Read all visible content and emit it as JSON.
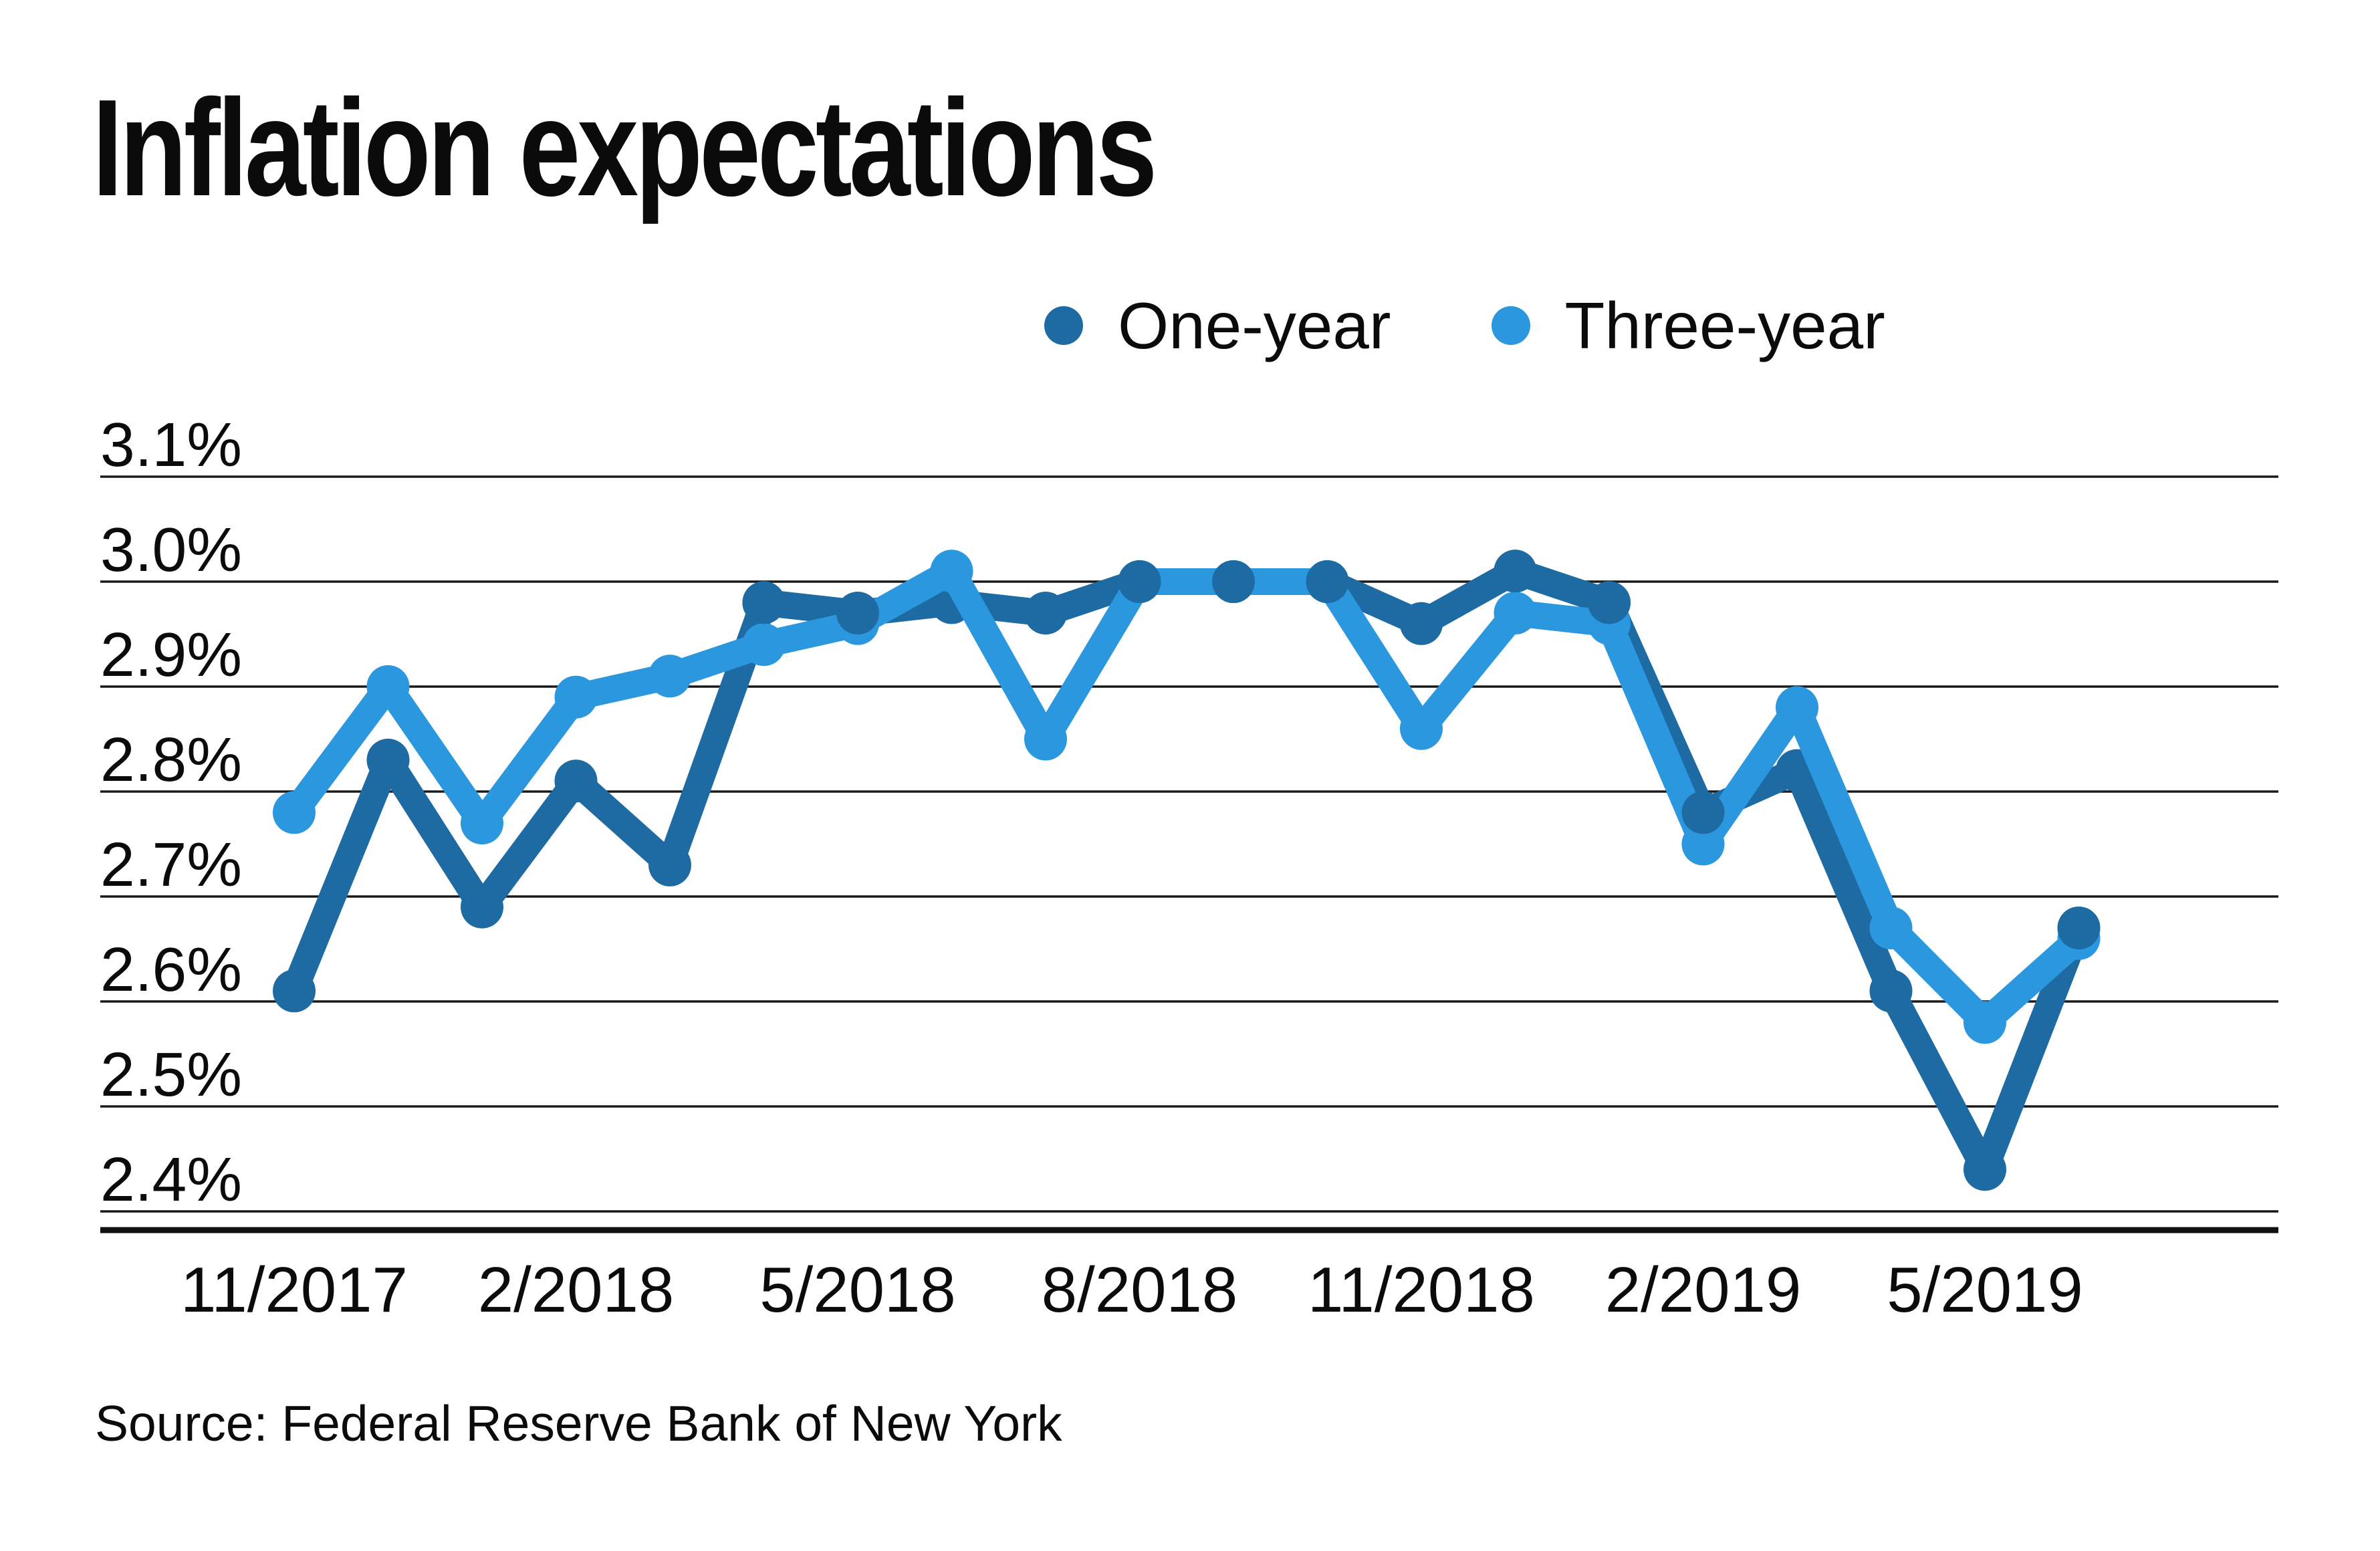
{
  "title": "Inflation expectations",
  "source": "Source: Federal Reserve Bank of New York",
  "legend": [
    {
      "label": "One-year",
      "color": "#1e6ba3"
    },
    {
      "label": "Three-year",
      "color": "#2b97de"
    }
  ],
  "colors": {
    "background": "#ffffff",
    "text": "#0b0b0b",
    "gridline": "#1a1a1a",
    "axis_line": "#111111",
    "one_year": "#1e6ba3",
    "three_year": "#2b97de"
  },
  "chart_data": {
    "type": "line",
    "title": "Inflation expectations",
    "x": [
      "11/2017",
      "12/2017",
      "1/2018",
      "2/2018",
      "3/2018",
      "4/2018",
      "5/2018",
      "6/2018",
      "7/2018",
      "8/2018",
      "9/2018",
      "10/2018",
      "11/2018",
      "12/2018",
      "1/2019",
      "2/2019",
      "3/2019",
      "4/2019",
      "5/2019",
      "6/2019"
    ],
    "series": [
      {
        "name": "One-year",
        "color": "#1e6ba3",
        "values": [
          2.61,
          2.83,
          2.69,
          2.81,
          2.73,
          2.98,
          2.97,
          2.98,
          2.97,
          3.0,
          3.0,
          3.0,
          2.96,
          3.01,
          2.98,
          2.78,
          2.82,
          2.61,
          2.44,
          2.67
        ]
      },
      {
        "name": "Three-year",
        "color": "#2b97de",
        "values": [
          2.78,
          2.9,
          2.77,
          2.89,
          2.91,
          2.94,
          2.96,
          3.01,
          2.85,
          3.0,
          3.0,
          3.0,
          2.86,
          2.97,
          2.96,
          2.75,
          2.88,
          2.67,
          2.58,
          2.66
        ]
      }
    ],
    "y_ticks": [
      {
        "value": 3.1,
        "label": "3.1%"
      },
      {
        "value": 3.0,
        "label": "3.0%"
      },
      {
        "value": 2.9,
        "label": "2.9%"
      },
      {
        "value": 2.8,
        "label": "2.8%"
      },
      {
        "value": 2.7,
        "label": "2.7%"
      },
      {
        "value": 2.6,
        "label": "2.6%"
      },
      {
        "value": 2.5,
        "label": "2.5%"
      },
      {
        "value": 2.4,
        "label": "2.4%"
      }
    ],
    "x_ticks": [
      {
        "index": 0,
        "label": "11/2017"
      },
      {
        "index": 3,
        "label": "2/2018"
      },
      {
        "index": 6,
        "label": "5/2018"
      },
      {
        "index": 9,
        "label": "8/2018"
      },
      {
        "index": 12,
        "label": "11/2018"
      },
      {
        "index": 15,
        "label": "2/2019"
      },
      {
        "index": 18,
        "label": "5/2019"
      }
    ],
    "ylim": [
      2.35,
      3.15
    ],
    "grid": true,
    "legend_position": "top-center",
    "unit": "%",
    "source": "Source: Federal Reserve Bank of New York"
  }
}
